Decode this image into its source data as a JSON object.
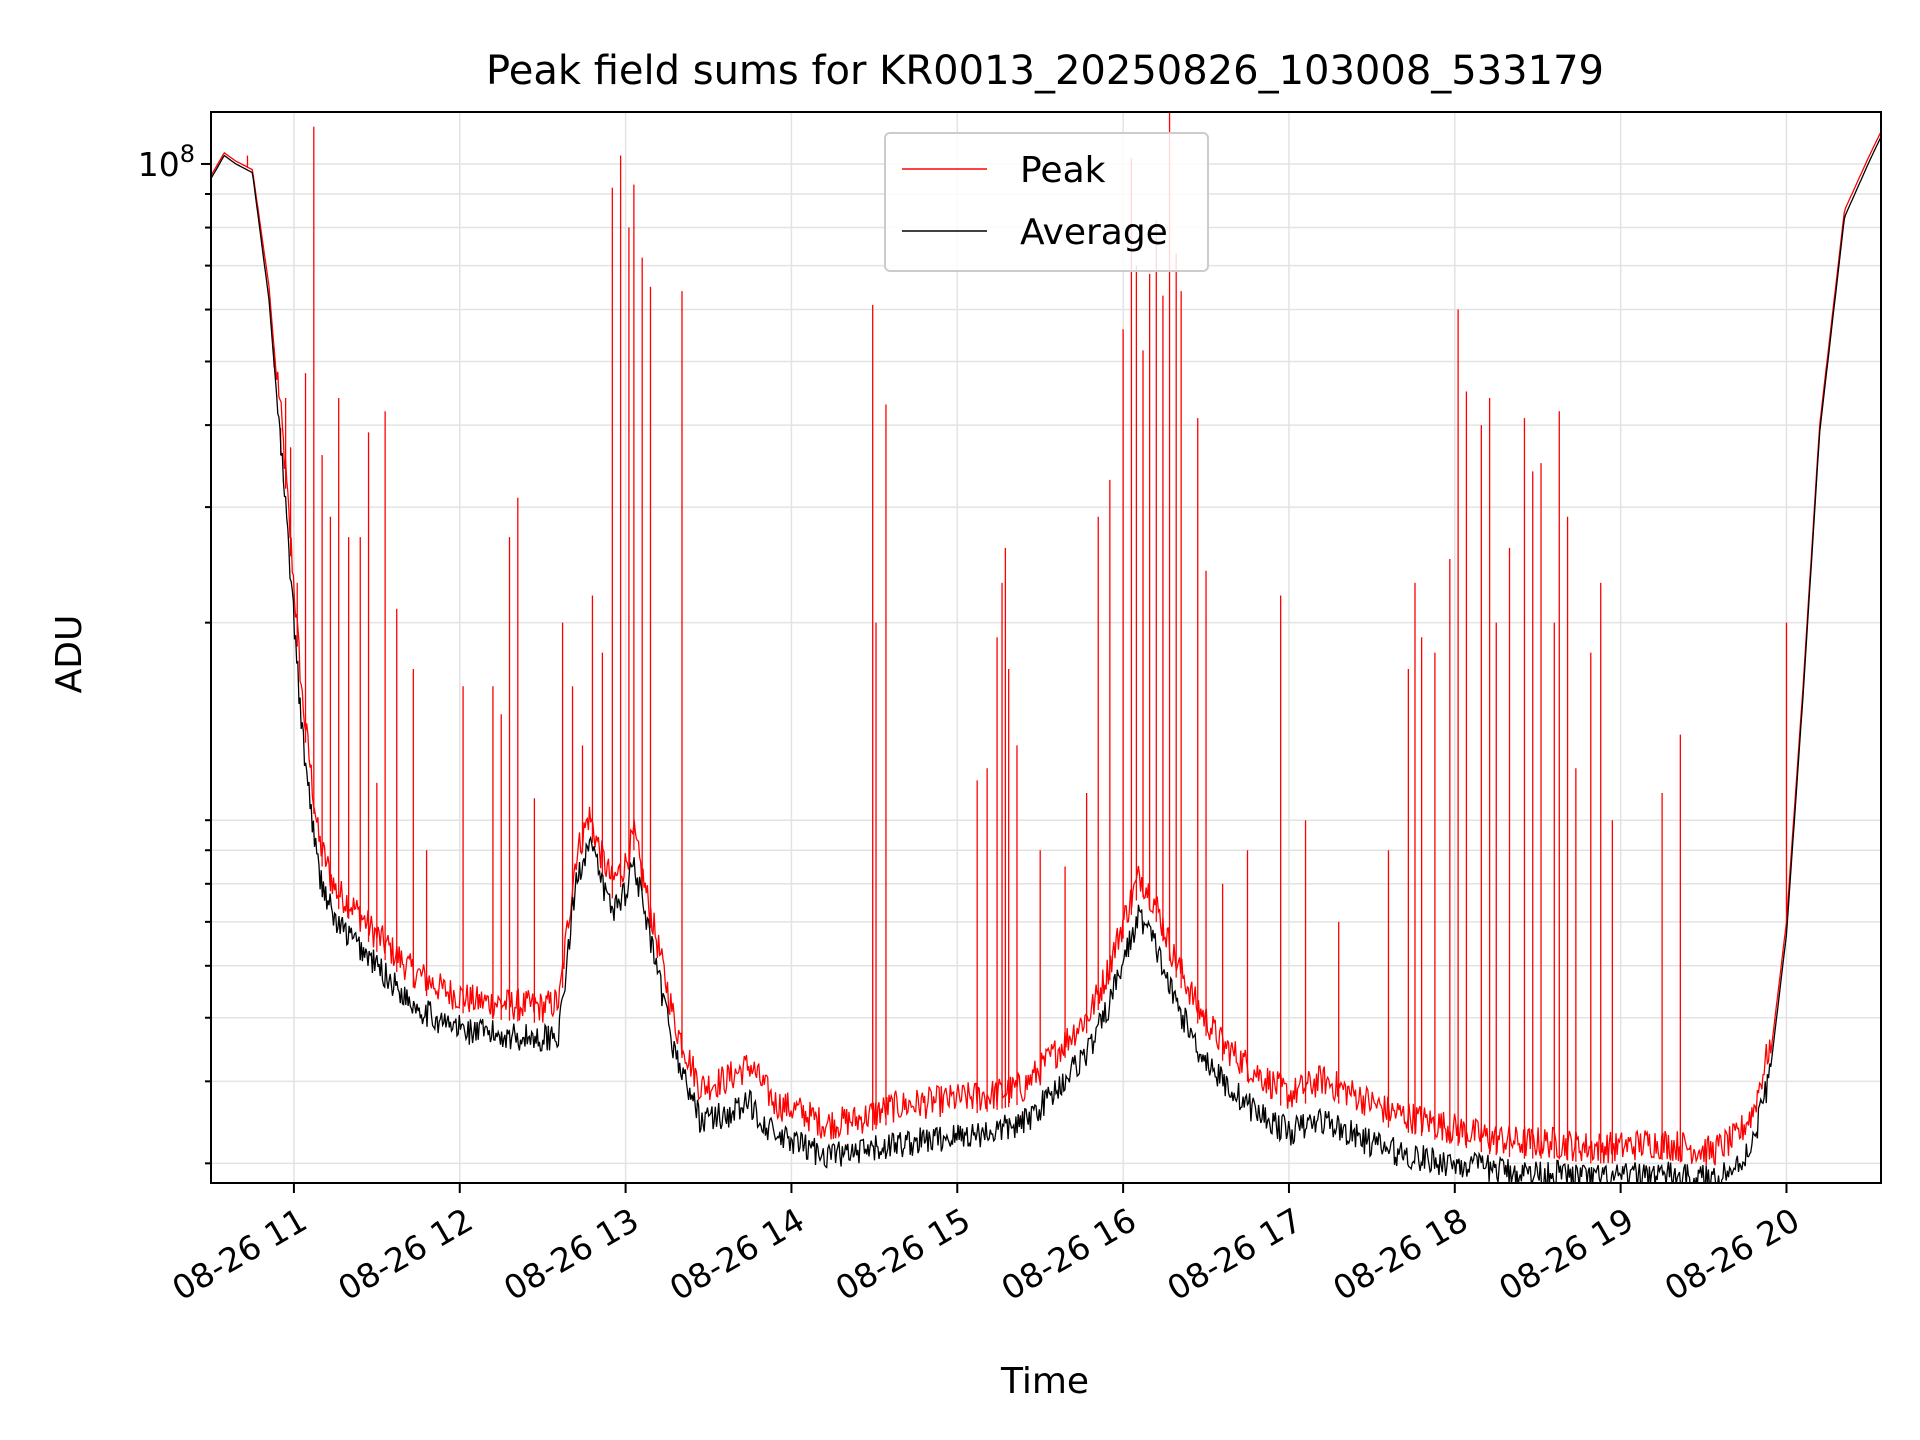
{
  "chart_data": {
    "type": "line",
    "title": "Peak field sums for KR0013_20250826_103008_533179",
    "xlabel": "Time",
    "ylabel": "ADU",
    "y_scale": "log",
    "x_ticks": [
      "08-26 11",
      "08-26 12",
      "08-26 13",
      "08-26 14",
      "08-26 15",
      "08-26 16",
      "08-26 17",
      "08-26 18",
      "08-26 19",
      "08-26 20"
    ],
    "y_tick_labels": [
      {
        "base": "10",
        "exp": "8",
        "value": 100000000
      }
    ],
    "grid": true,
    "legend_position": "top-center",
    "series": [
      {
        "name": "Peak",
        "color": "#ff0000",
        "x_hours": [
          10.5,
          10.58,
          10.65,
          10.75,
          10.85,
          10.95,
          11.05,
          11.15,
          11.25,
          11.35,
          11.5,
          11.7,
          11.9,
          12.1,
          12.3,
          12.5,
          12.6,
          12.65,
          12.7,
          12.78,
          12.85,
          12.92,
          13.0,
          13.05,
          13.1,
          13.2,
          13.3,
          13.45,
          13.6,
          13.75,
          13.9,
          14.05,
          14.2,
          14.4,
          14.6,
          14.8,
          15.0,
          15.2,
          15.4,
          15.6,
          15.8,
          15.9,
          16.0,
          16.1,
          16.2,
          16.3,
          16.45,
          16.6,
          16.8,
          17.0,
          17.2,
          17.4,
          17.6,
          17.8,
          18.0,
          18.2,
          18.4,
          18.6,
          18.8,
          19.0,
          19.2,
          19.4,
          19.55,
          19.7,
          19.8,
          19.9,
          20.0,
          20.1,
          20.2,
          20.35,
          20.5,
          20.57
        ],
        "values": [
          96000000.0,
          104000000.0,
          101000000.0,
          98000000.0,
          65000000.0,
          32000000.0,
          14500000.0,
          8800000.0,
          7400000.0,
          7000000.0,
          6300000.0,
          5600000.0,
          5200000.0,
          5000000.0,
          4950000.0,
          4900000.0,
          5000000.0,
          6500000.0,
          8300000.0,
          9600000.0,
          8400000.0,
          7600000.0,
          8100000.0,
          9000000.0,
          7800000.0,
          6000000.0,
          4600000.0,
          3700000.0,
          3800000.0,
          4000000.0,
          3500000.0,
          3400000.0,
          3250000.0,
          3300000.0,
          3450000.0,
          3500000.0,
          3550000.0,
          3600000.0,
          3700000.0,
          4200000.0,
          4800000.0,
          5500000.0,
          6600000.0,
          7800000.0,
          7000000.0,
          5900000.0,
          4900000.0,
          4300000.0,
          3900000.0,
          3600000.0,
          3800000.0,
          3600000.0,
          3400000.0,
          3300000.0,
          3200000.0,
          3100000.0,
          3050000.0,
          3050000.0,
          3000000.0,
          3000000.0,
          3050000.0,
          3000000.0,
          2950000.0,
          3100000.0,
          3400000.0,
          4300000.0,
          7000000.0,
          16000000.0,
          40000000.0,
          85000000.0,
          103000000.0,
          112000000.0
        ],
        "spikes": [
          [
            10.72,
            103000000.0
          ],
          [
            10.88,
            49000000.0
          ],
          [
            10.92,
            36000000.0
          ],
          [
            10.95,
            44000000.0
          ],
          [
            10.98,
            37000000.0
          ],
          [
            11.02,
            23000000.0
          ],
          [
            11.07,
            48000000.0
          ],
          [
            11.12,
            114000000.0
          ],
          [
            11.17,
            36000000.0
          ],
          [
            11.22,
            29000000.0
          ],
          [
            11.27,
            44000000.0
          ],
          [
            11.33,
            27000000.0
          ],
          [
            11.4,
            27000000.0
          ],
          [
            11.45,
            39000000.0
          ],
          [
            11.5,
            11400000.0
          ],
          [
            11.55,
            42000000.0
          ],
          [
            11.62,
            21000000.0
          ],
          [
            11.72,
            17000000.0
          ],
          [
            11.8,
            9000000.0
          ],
          [
            12.02,
            16000000.0
          ],
          [
            12.2,
            16000000.0
          ],
          [
            12.25,
            14500000.0
          ],
          [
            12.3,
            27000000.0
          ],
          [
            12.35,
            31000000.0
          ],
          [
            12.45,
            10800000.0
          ],
          [
            12.62,
            20000000.0
          ],
          [
            12.68,
            16000000.0
          ],
          [
            12.74,
            13000000.0
          ],
          [
            12.8,
            22000000.0
          ],
          [
            12.86,
            18000000.0
          ],
          [
            12.92,
            92000000.0
          ],
          [
            12.97,
            103000000.0
          ],
          [
            13.02,
            80000000.0
          ],
          [
            13.05,
            93000000.0
          ],
          [
            13.1,
            72000000.0
          ],
          [
            13.15,
            65000000.0
          ],
          [
            13.34,
            64000000.0
          ],
          [
            14.49,
            61000000.0
          ],
          [
            14.51,
            20000000.0
          ],
          [
            14.57,
            43000000.0
          ],
          [
            15.12,
            11500000.0
          ],
          [
            15.18,
            12000000.0
          ],
          [
            15.24,
            19000000.0
          ],
          [
            15.27,
            23000000.0
          ],
          [
            15.29,
            26000000.0
          ],
          [
            15.31,
            17000000.0
          ],
          [
            15.36,
            13000000.0
          ],
          [
            15.5,
            9000000.0
          ],
          [
            15.65,
            8500000.0
          ],
          [
            15.78,
            11000000.0
          ],
          [
            15.85,
            29000000.0
          ],
          [
            15.92,
            33000000.0
          ],
          [
            16.0,
            56000000.0
          ],
          [
            16.05,
            102000000.0
          ],
          [
            16.08,
            70000000.0
          ],
          [
            16.12,
            52000000.0
          ],
          [
            16.16,
            68000000.0
          ],
          [
            16.2,
            82000000.0
          ],
          [
            16.24,
            63000000.0
          ],
          [
            16.28,
            120000000.0
          ],
          [
            16.32,
            73000000.0
          ],
          [
            16.35,
            64000000.0
          ],
          [
            16.45,
            41000000.0
          ],
          [
            16.5,
            24000000.0
          ],
          [
            16.6,
            8000000.0
          ],
          [
            16.75,
            9000000.0
          ],
          [
            16.95,
            22000000.0
          ],
          [
            17.1,
            10000000.0
          ],
          [
            17.3,
            7000000.0
          ],
          [
            17.6,
            9000000.0
          ],
          [
            17.72,
            17000000.0
          ],
          [
            17.76,
            23000000.0
          ],
          [
            17.8,
            19000000.0
          ],
          [
            17.88,
            18000000.0
          ],
          [
            17.97,
            25000000.0
          ],
          [
            18.02,
            60000000.0
          ],
          [
            18.07,
            45000000.0
          ],
          [
            18.16,
            40000000.0
          ],
          [
            18.21,
            44000000.0
          ],
          [
            18.25,
            20000000.0
          ],
          [
            18.33,
            26000000.0
          ],
          [
            18.42,
            41000000.0
          ],
          [
            18.47,
            34000000.0
          ],
          [
            18.52,
            35000000.0
          ],
          [
            18.6,
            20000000.0
          ],
          [
            18.63,
            42000000.0
          ],
          [
            18.68,
            29000000.0
          ],
          [
            18.73,
            12000000.0
          ],
          [
            18.82,
            18000000.0
          ],
          [
            18.88,
            23000000.0
          ],
          [
            18.95,
            10000000.0
          ],
          [
            19.25,
            11000000.0
          ],
          [
            19.36,
            13500000.0
          ],
          [
            20.0,
            20000000.0
          ]
        ]
      },
      {
        "name": "Average",
        "color": "#000000",
        "x_hours": [
          10.5,
          10.58,
          10.65,
          10.75,
          10.85,
          10.95,
          11.05,
          11.15,
          11.25,
          11.35,
          11.5,
          11.7,
          11.9,
          12.1,
          12.3,
          12.5,
          12.6,
          12.65,
          12.7,
          12.78,
          12.85,
          12.92,
          13.0,
          13.05,
          13.1,
          13.2,
          13.3,
          13.45,
          13.6,
          13.75,
          13.9,
          14.05,
          14.2,
          14.4,
          14.6,
          14.8,
          15.0,
          15.2,
          15.4,
          15.6,
          15.8,
          15.9,
          16.0,
          16.1,
          16.2,
          16.3,
          16.45,
          16.6,
          16.8,
          17.0,
          17.2,
          17.4,
          17.6,
          17.8,
          18.0,
          18.2,
          18.4,
          18.6,
          18.8,
          19.0,
          19.2,
          19.4,
          19.55,
          19.7,
          19.8,
          19.9,
          20.0,
          20.1,
          20.2,
          20.35,
          20.5,
          20.57
        ],
        "values": [
          95000000.0,
          103000000.0,
          100000000.0,
          97000000.0,
          62000000.0,
          30000000.0,
          13500000.0,
          8300000.0,
          7000000.0,
          6600000.0,
          6000000.0,
          5300000.0,
          4900000.0,
          4750000.0,
          4700000.0,
          4650000.0,
          4750000.0,
          6200000.0,
          8000000.0,
          9400000.0,
          8100000.0,
          7300000.0,
          7800000.0,
          8700000.0,
          7500000.0,
          5700000.0,
          4400000.0,
          3500000.0,
          3550000.0,
          3700000.0,
          3300000.0,
          3200000.0,
          3100000.0,
          3100000.0,
          3200000.0,
          3250000.0,
          3300000.0,
          3350000.0,
          3450000.0,
          3900000.0,
          4500000.0,
          5100000.0,
          6100000.0,
          7200000.0,
          6400000.0,
          5400000.0,
          4500000.0,
          4000000.0,
          3600000.0,
          3350000.0,
          3500000.0,
          3300000.0,
          3150000.0,
          3050000.0,
          3000000.0,
          2950000.0,
          2900000.0,
          2900000.0,
          2850000.0,
          2850000.0,
          2900000.0,
          2850000.0,
          2850000.0,
          2950000.0,
          3250000.0,
          4100000.0,
          6700000.0,
          15500000.0,
          39000000.0,
          83000000.0,
          101000000.0,
          110000000.0
        ]
      }
    ]
  }
}
